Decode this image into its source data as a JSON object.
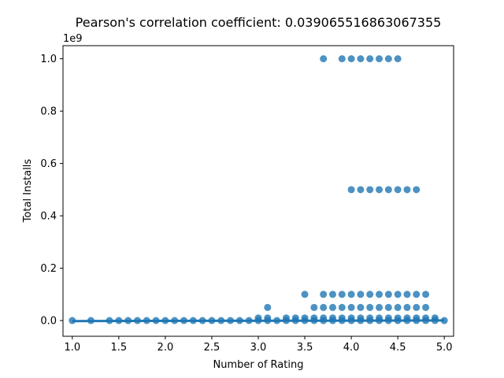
{
  "chart_data": {
    "type": "scatter",
    "title": "Pearson's correlation coefficient: 0.039065516863067355",
    "xlabel": "Number of Rating",
    "ylabel": "Total Installs",
    "y_offset_label": "1e9",
    "xlim": [
      0.9,
      5.1
    ],
    "ylim": [
      -0.06,
      1.05
    ],
    "x_ticks": [
      1.0,
      1.5,
      2.0,
      2.5,
      3.0,
      3.5,
      4.0,
      4.5,
      5.0
    ],
    "x_tick_labels": [
      "1.0",
      "1.5",
      "2.0",
      "2.5",
      "3.0",
      "3.5",
      "4.0",
      "4.5",
      "5.0"
    ],
    "y_ticks": [
      0.0,
      0.2,
      0.4,
      0.6,
      0.8,
      1.0
    ],
    "y_tick_labels": [
      "0.0",
      "0.2",
      "0.4",
      "0.6",
      "0.8",
      "1.0"
    ],
    "y_unit_multiplier": 1000000000,
    "grid": false,
    "colors": {
      "points": "#1f77b4",
      "regression_line": "#1f77b4"
    },
    "regression_line": {
      "x": [
        1.0,
        5.0
      ],
      "y": [
        -0.002,
        0.0005
      ]
    },
    "series": [
      {
        "points": [
          [
            1.0,
            0.0
          ],
          [
            1.2,
            0.0
          ],
          [
            1.4,
            0.0
          ],
          [
            1.5,
            0.0
          ],
          [
            1.6,
            0.0
          ],
          [
            1.7,
            0.0
          ],
          [
            1.8,
            0.0
          ],
          [
            1.9,
            0.0
          ],
          [
            2.0,
            0.0
          ],
          [
            2.1,
            0.0
          ],
          [
            2.2,
            0.0
          ],
          [
            2.3,
            0.0
          ],
          [
            2.4,
            0.0
          ],
          [
            2.5,
            0.0
          ],
          [
            2.6,
            0.0
          ],
          [
            2.7,
            0.0
          ],
          [
            2.8,
            0.0
          ],
          [
            2.9,
            0.0
          ],
          [
            3.0,
            0.0
          ],
          [
            3.0,
            0.01
          ],
          [
            3.1,
            0.0
          ],
          [
            3.1,
            0.01
          ],
          [
            3.1,
            0.05
          ],
          [
            3.2,
            0.0
          ],
          [
            3.3,
            0.0
          ],
          [
            3.3,
            0.01
          ],
          [
            3.4,
            0.0
          ],
          [
            3.4,
            0.01
          ],
          [
            3.5,
            0.0
          ],
          [
            3.5,
            0.01
          ],
          [
            3.5,
            0.1
          ],
          [
            3.6,
            0.0
          ],
          [
            3.6,
            0.01
          ],
          [
            3.6,
            0.05
          ],
          [
            3.7,
            0.0
          ],
          [
            3.7,
            0.01
          ],
          [
            3.7,
            0.05
          ],
          [
            3.7,
            0.1
          ],
          [
            3.7,
            1.0
          ],
          [
            3.8,
            0.0
          ],
          [
            3.8,
            0.01
          ],
          [
            3.8,
            0.05
          ],
          [
            3.8,
            0.1
          ],
          [
            3.9,
            0.0
          ],
          [
            3.9,
            0.01
          ],
          [
            3.9,
            0.05
          ],
          [
            3.9,
            0.1
          ],
          [
            3.9,
            1.0
          ],
          [
            4.0,
            0.0
          ],
          [
            4.0,
            0.01
          ],
          [
            4.0,
            0.05
          ],
          [
            4.0,
            0.1
          ],
          [
            4.0,
            0.5
          ],
          [
            4.0,
            1.0
          ],
          [
            4.1,
            0.0
          ],
          [
            4.1,
            0.01
          ],
          [
            4.1,
            0.05
          ],
          [
            4.1,
            0.1
          ],
          [
            4.1,
            0.5
          ],
          [
            4.1,
            1.0
          ],
          [
            4.2,
            0.0
          ],
          [
            4.2,
            0.01
          ],
          [
            4.2,
            0.05
          ],
          [
            4.2,
            0.1
          ],
          [
            4.2,
            0.5
          ],
          [
            4.2,
            1.0
          ],
          [
            4.3,
            0.0
          ],
          [
            4.3,
            0.01
          ],
          [
            4.3,
            0.05
          ],
          [
            4.3,
            0.1
          ],
          [
            4.3,
            0.5
          ],
          [
            4.3,
            1.0
          ],
          [
            4.4,
            0.0
          ],
          [
            4.4,
            0.01
          ],
          [
            4.4,
            0.05
          ],
          [
            4.4,
            0.1
          ],
          [
            4.4,
            0.5
          ],
          [
            4.4,
            1.0
          ],
          [
            4.5,
            0.0
          ],
          [
            4.5,
            0.01
          ],
          [
            4.5,
            0.05
          ],
          [
            4.5,
            0.1
          ],
          [
            4.5,
            0.5
          ],
          [
            4.5,
            1.0
          ],
          [
            4.6,
            0.0
          ],
          [
            4.6,
            0.01
          ],
          [
            4.6,
            0.05
          ],
          [
            4.6,
            0.1
          ],
          [
            4.6,
            0.5
          ],
          [
            4.7,
            0.0
          ],
          [
            4.7,
            0.01
          ],
          [
            4.7,
            0.05
          ],
          [
            4.7,
            0.1
          ],
          [
            4.7,
            0.5
          ],
          [
            4.8,
            0.0
          ],
          [
            4.8,
            0.01
          ],
          [
            4.8,
            0.05
          ],
          [
            4.8,
            0.1
          ],
          [
            4.9,
            0.0
          ],
          [
            4.9,
            0.01
          ],
          [
            5.0,
            0.0
          ]
        ]
      }
    ]
  }
}
